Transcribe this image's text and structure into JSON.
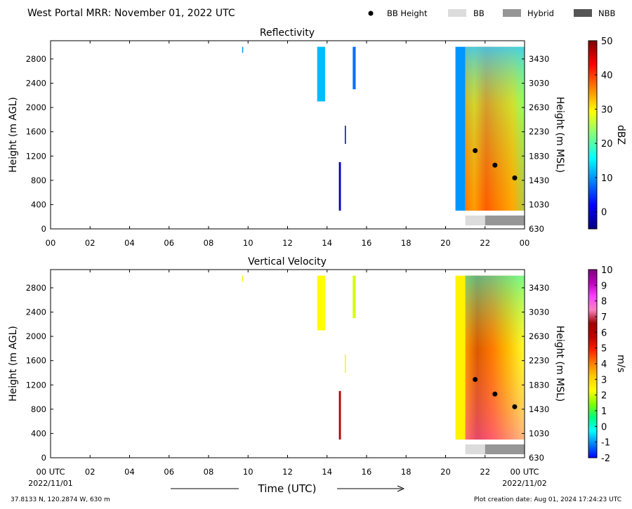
{
  "header": {
    "title": "West Portal MRR:  November 01, 2022 UTC",
    "legend": [
      {
        "label": "BB Height",
        "kind": "dot",
        "color": "#000000"
      },
      {
        "label": "BB",
        "kind": "box",
        "color": "#dcdcdc"
      },
      {
        "label": "Hybrid",
        "kind": "box",
        "color": "#969696"
      },
      {
        "label": "NBB",
        "kind": "box",
        "color": "#555555"
      }
    ]
  },
  "footer": {
    "location": "37.8133 N, 120.2874 W, 630 m",
    "creation": "Plot creation date: Aug 01, 2024 17:24:23 UTC"
  },
  "chart_data": [
    {
      "type": "heatmap",
      "title": "Reflectivity",
      "ylabel": "Height (m AGL)",
      "ylabel_right": "Height (m MSL)",
      "xlabel": "",
      "x_range_hours": [
        0,
        24
      ],
      "x_ticks": [
        "00",
        "02",
        "04",
        "06",
        "08",
        "10",
        "12",
        "14",
        "16",
        "18",
        "20",
        "22",
        "00"
      ],
      "y_range_m_agl": [
        0,
        3100
      ],
      "y_ticks_left": [
        "0",
        "400",
        "800",
        "1200",
        "1600",
        "2000",
        "2400",
        "2800"
      ],
      "y_ticks_right": [
        "630",
        "1030",
        "1430",
        "1830",
        "2230",
        "2630",
        "3030",
        "3430"
      ],
      "colorbar": {
        "label": "dBZ",
        "range": [
          -5,
          50
        ],
        "ticks": [
          "0",
          "10",
          "20",
          "30",
          "40",
          "50"
        ],
        "colormap": "jet",
        "stops": [
          "#00007f",
          "#0000ff",
          "#007fff",
          "#00ffff",
          "#7fff7f",
          "#ffff00",
          "#ff7f00",
          "#ff0000",
          "#7f0000"
        ]
      },
      "bb_height_points": [
        {
          "time_h": 21.5,
          "height_m": 1290
        },
        {
          "time_h": 22.5,
          "height_m": 1050
        },
        {
          "time_h": 23.5,
          "height_m": 840
        }
      ],
      "bb_type_segments": [
        {
          "start_h": 21.0,
          "end_h": 22.0,
          "type": "BB"
        },
        {
          "start_h": 22.0,
          "end_h": 24.0,
          "type": "Hybrid"
        }
      ],
      "echo_regions": [
        {
          "start_h": 9.7,
          "end_h": 9.75,
          "bottom_m": 2900,
          "top_m": 3000,
          "value": 10
        },
        {
          "start_h": 13.5,
          "end_h": 13.9,
          "bottom_m": 2100,
          "top_m": 3000,
          "value": 12
        },
        {
          "start_h": 14.6,
          "end_h": 14.7,
          "bottom_m": 300,
          "top_m": 1100,
          "value": -2
        },
        {
          "start_h": 14.9,
          "end_h": 14.95,
          "bottom_m": 1400,
          "top_m": 1700,
          "value": -2
        },
        {
          "start_h": 15.3,
          "end_h": 15.45,
          "bottom_m": 2300,
          "top_m": 3000,
          "value": 8
        },
        {
          "start_h": 20.5,
          "end_h": 21.0,
          "bottom_m": 300,
          "top_m": 3000,
          "value": 10
        },
        {
          "start_h": 21.0,
          "end_h": 24.0,
          "bottom_m": 300,
          "top_m": 3000,
          "value": 28
        }
      ]
    },
    {
      "type": "heatmap",
      "title": "Vertical Velocity",
      "ylabel": "Height (m AGL)",
      "ylabel_right": "Height (m MSL)",
      "xlabel": "Time (UTC)",
      "x_range_hours": [
        0,
        24
      ],
      "x_ticks": [
        "00 UTC",
        "02",
        "04",
        "06",
        "08",
        "10",
        "12",
        "14",
        "16",
        "18",
        "20",
        "22",
        "00 UTC"
      ],
      "x_date_labels": [
        "2022/11/01",
        "2022/11/02"
      ],
      "y_range_m_agl": [
        0,
        3100
      ],
      "y_ticks_left": [
        "0",
        "400",
        "800",
        "1200",
        "1600",
        "2000",
        "2400",
        "2800"
      ],
      "y_ticks_right": [
        "630",
        "1030",
        "1430",
        "1830",
        "2230",
        "2630",
        "3030",
        "3430"
      ],
      "colorbar": {
        "label": "m/s",
        "range": [
          -2,
          10
        ],
        "ticks": [
          "-2",
          "-1",
          "0",
          "1",
          "2",
          "3",
          "4",
          "5",
          "6",
          "7",
          "8",
          "9",
          "10"
        ],
        "colormap": "velocity",
        "stops": [
          "#0000ff",
          "#0080ff",
          "#00ffff",
          "#00ff80",
          "#80ff00",
          "#ffff00",
          "#ffd000",
          "#ff8000",
          "#ff2000",
          "#c00000",
          "#a00000",
          "#ff80c0",
          "#ff40ff",
          "#c000c0",
          "#800080"
        ]
      },
      "bb_height_points": [
        {
          "time_h": 21.5,
          "height_m": 1290
        },
        {
          "time_h": 22.5,
          "height_m": 1050
        },
        {
          "time_h": 23.5,
          "height_m": 840
        }
      ],
      "bb_type_segments": [
        {
          "start_h": 21.0,
          "end_h": 22.0,
          "type": "BB"
        },
        {
          "start_h": 22.0,
          "end_h": 24.0,
          "type": "Hybrid"
        }
      ],
      "echo_regions": [
        {
          "start_h": 9.7,
          "end_h": 9.75,
          "bottom_m": 2900,
          "top_m": 3000,
          "value": 2.5
        },
        {
          "start_h": 13.5,
          "end_h": 13.9,
          "bottom_m": 2100,
          "top_m": 3000,
          "value": 2.3
        },
        {
          "start_h": 14.6,
          "end_h": 14.7,
          "bottom_m": 300,
          "top_m": 1100,
          "value": 6
        },
        {
          "start_h": 14.9,
          "end_h": 14.95,
          "bottom_m": 1400,
          "top_m": 1700,
          "value": 2.2
        },
        {
          "start_h": 15.3,
          "end_h": 15.45,
          "bottom_m": 2300,
          "top_m": 3000,
          "value": 2
        },
        {
          "start_h": 20.5,
          "end_h": 21.0,
          "bottom_m": 300,
          "top_m": 3000,
          "value": 2.5
        },
        {
          "start_h": 21.0,
          "end_h": 24.0,
          "bottom_m": 300,
          "top_m": 3000,
          "value": 4.5
        }
      ]
    }
  ]
}
